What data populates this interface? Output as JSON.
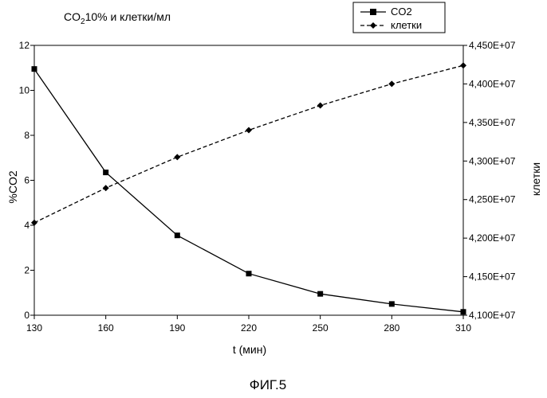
{
  "chart_data": {
    "type": "line",
    "title_main": "CO",
    "title_sub": "2",
    "title_rest": "10% и клетки/мл",
    "xlabel": "t (мин)",
    "ylabel_left": "%CO2",
    "ylabel_right": "клетки",
    "caption": "ФИГ.5",
    "x": [
      130,
      160,
      190,
      220,
      250,
      280,
      310
    ],
    "xlim": [
      130,
      310
    ],
    "ylim_left": [
      0,
      12
    ],
    "yticks_left": [
      0,
      2,
      4,
      6,
      8,
      10,
      12
    ],
    "ylim_right": [
      41000000,
      44500000
    ],
    "yticks_right": [
      {
        "value": 41000000,
        "label": "4,100E+07"
      },
      {
        "value": 41500000,
        "label": "4,150E+07"
      },
      {
        "value": 42000000,
        "label": "4,200E+07"
      },
      {
        "value": 42500000,
        "label": "4,250E+07"
      },
      {
        "value": 43000000,
        "label": "4,300E+07"
      },
      {
        "value": 43500000,
        "label": "4,350E+07"
      },
      {
        "value": 44000000,
        "label": "4,400E+07"
      },
      {
        "value": 44500000,
        "label": "4,450E+07"
      }
    ],
    "grid": false,
    "legend_position": "top-right",
    "series": [
      {
        "name": "CO2",
        "axis": "left",
        "line": "solid",
        "marker": "square",
        "values": [
          10.95,
          6.35,
          3.55,
          1.85,
          0.95,
          0.5,
          0.15
        ]
      },
      {
        "name": "клетки",
        "axis": "right",
        "line": "dashed",
        "marker": "diamond",
        "values": [
          42200000,
          42650000,
          43050000,
          43400000,
          43720000,
          44000000,
          44240000
        ]
      }
    ]
  }
}
